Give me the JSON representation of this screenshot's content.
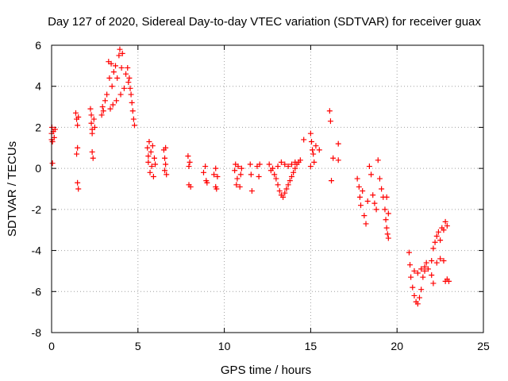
{
  "chart_data": {
    "type": "scatter",
    "title": "Day 127 of 2020, Sidereal Day-to-day VTEC variation (SDTVAR) for receiver guax",
    "xlabel": "GPS time / hours",
    "ylabel": "SDTVAR / TECUs",
    "xlim": [
      0,
      25
    ],
    "ylim": [
      -8,
      6
    ],
    "xticks": [
      0,
      5,
      10,
      15,
      20,
      25
    ],
    "yticks": [
      -8,
      -6,
      -4,
      -2,
      0,
      2,
      4,
      6
    ],
    "xtick_labels": [
      "0",
      "5",
      "10",
      "15",
      "20",
      "25"
    ],
    "ytick_labels": [
      "-8",
      "-6",
      "-4",
      "-2",
      "0",
      "2",
      "4",
      "6"
    ],
    "grid": true,
    "marker": "+",
    "color": "#ff0000",
    "series": [
      {
        "name": "SDTVAR",
        "points": [
          [
            0.0,
            1.4
          ],
          [
            0.0,
            1.7
          ],
          [
            0.02,
            2.0
          ],
          [
            0.05,
            1.3
          ],
          [
            0.05,
            0.25
          ],
          [
            0.1,
            1.8
          ],
          [
            0.15,
            1.5
          ],
          [
            0.2,
            1.9
          ],
          [
            1.4,
            2.7
          ],
          [
            1.45,
            2.4
          ],
          [
            1.5,
            2.1
          ],
          [
            1.5,
            1.0
          ],
          [
            1.45,
            0.7
          ],
          [
            1.5,
            -0.7
          ],
          [
            1.55,
            -1.0
          ],
          [
            1.55,
            2.5
          ],
          [
            2.25,
            2.9
          ],
          [
            2.3,
            2.6
          ],
          [
            2.3,
            2.2
          ],
          [
            2.35,
            1.9
          ],
          [
            2.35,
            0.8
          ],
          [
            2.4,
            0.5
          ],
          [
            2.45,
            2.4
          ],
          [
            2.5,
            2.0
          ],
          [
            2.35,
            1.7
          ],
          [
            2.9,
            2.6
          ],
          [
            2.95,
            3.0
          ],
          [
            3.0,
            2.8
          ],
          [
            3.1,
            3.3
          ],
          [
            3.2,
            3.6
          ],
          [
            3.3,
            5.2
          ],
          [
            3.35,
            4.4
          ],
          [
            3.4,
            2.9
          ],
          [
            3.45,
            5.1
          ],
          [
            3.5,
            4.0
          ],
          [
            3.55,
            3.1
          ],
          [
            3.6,
            4.7
          ],
          [
            3.7,
            5.0
          ],
          [
            3.75,
            3.3
          ],
          [
            3.8,
            4.4
          ],
          [
            3.9,
            5.5
          ],
          [
            3.95,
            5.8
          ],
          [
            4.0,
            3.6
          ],
          [
            4.05,
            4.9
          ],
          [
            4.1,
            5.6
          ],
          [
            4.2,
            3.9
          ],
          [
            4.3,
            4.6
          ],
          [
            4.4,
            4.9
          ],
          [
            4.45,
            4.2
          ],
          [
            4.5,
            4.4
          ],
          [
            4.55,
            3.9
          ],
          [
            4.6,
            3.6
          ],
          [
            4.65,
            3.2
          ],
          [
            4.7,
            2.8
          ],
          [
            4.75,
            2.4
          ],
          [
            4.8,
            2.1
          ],
          [
            5.55,
            1.0
          ],
          [
            5.6,
            0.6
          ],
          [
            5.6,
            0.3
          ],
          [
            5.65,
            1.3
          ],
          [
            5.7,
            -0.2
          ],
          [
            5.75,
            0.8
          ],
          [
            5.8,
            0.1
          ],
          [
            5.85,
            1.1
          ],
          [
            5.9,
            -0.4
          ],
          [
            5.95,
            0.5
          ],
          [
            6.0,
            0.2
          ],
          [
            6.5,
            0.9
          ],
          [
            6.55,
            0.5
          ],
          [
            6.55,
            -0.1
          ],
          [
            6.6,
            0.2
          ],
          [
            6.65,
            -0.3
          ],
          [
            6.6,
            1.0
          ],
          [
            7.9,
            0.6
          ],
          [
            7.95,
            0.1
          ],
          [
            7.95,
            -0.8
          ],
          [
            8.0,
            0.3
          ],
          [
            8.05,
            -0.9
          ],
          [
            8.8,
            -0.2
          ],
          [
            8.9,
            0.1
          ],
          [
            8.95,
            -0.6
          ],
          [
            9.0,
            -0.7
          ],
          [
            9.4,
            -0.3
          ],
          [
            9.5,
            0.0
          ],
          [
            9.5,
            -0.9
          ],
          [
            9.55,
            -1.0
          ],
          [
            9.6,
            -0.4
          ],
          [
            10.6,
            -0.1
          ],
          [
            10.65,
            0.2
          ],
          [
            10.7,
            -0.8
          ],
          [
            10.75,
            -0.5
          ],
          [
            10.8,
            0.1
          ],
          [
            10.9,
            -0.9
          ],
          [
            10.95,
            -0.3
          ],
          [
            11.0,
            0.0
          ],
          [
            11.5,
            0.2
          ],
          [
            11.55,
            -0.3
          ],
          [
            11.6,
            -1.1
          ],
          [
            11.9,
            0.1
          ],
          [
            12.0,
            -0.4
          ],
          [
            12.05,
            0.2
          ],
          [
            12.6,
            0.2
          ],
          [
            12.7,
            -0.1
          ],
          [
            12.8,
            0.0
          ],
          [
            12.9,
            -0.3
          ],
          [
            13.0,
            -0.5
          ],
          [
            13.1,
            -0.8
          ],
          [
            13.2,
            -1.1
          ],
          [
            13.3,
            -1.3
          ],
          [
            13.4,
            -1.4
          ],
          [
            13.5,
            -1.2
          ],
          [
            13.6,
            -1.0
          ],
          [
            13.7,
            -0.8
          ],
          [
            13.8,
            -0.6
          ],
          [
            13.9,
            -0.4
          ],
          [
            14.0,
            -0.2
          ],
          [
            14.1,
            0.0
          ],
          [
            14.2,
            0.2
          ],
          [
            14.3,
            0.3
          ],
          [
            13.1,
            0.1
          ],
          [
            13.3,
            0.3
          ],
          [
            13.5,
            0.2
          ],
          [
            13.7,
            0.1
          ],
          [
            13.9,
            0.2
          ],
          [
            14.1,
            0.3
          ],
          [
            14.4,
            0.4
          ],
          [
            14.6,
            1.4
          ],
          [
            15.0,
            1.7
          ],
          [
            15.05,
            1.3
          ],
          [
            15.1,
            0.9
          ],
          [
            15.15,
            0.7
          ],
          [
            15.2,
            0.3
          ],
          [
            15.0,
            0.1
          ],
          [
            15.3,
            1.1
          ],
          [
            15.5,
            0.9
          ],
          [
            16.1,
            2.8
          ],
          [
            16.15,
            2.3
          ],
          [
            16.2,
            -0.6
          ],
          [
            16.3,
            0.5
          ],
          [
            16.6,
            1.2
          ],
          [
            16.6,
            0.4
          ],
          [
            17.7,
            -0.5
          ],
          [
            17.8,
            -0.9
          ],
          [
            17.85,
            -1.4
          ],
          [
            17.9,
            -1.8
          ],
          [
            18.0,
            -1.1
          ],
          [
            18.1,
            -2.3
          ],
          [
            18.2,
            -2.7
          ],
          [
            18.3,
            -1.6
          ],
          [
            18.4,
            0.1
          ],
          [
            18.5,
            -0.3
          ],
          [
            18.6,
            -1.3
          ],
          [
            18.7,
            -1.7
          ],
          [
            18.8,
            -2.0
          ],
          [
            18.9,
            0.4
          ],
          [
            19.0,
            -0.5
          ],
          [
            19.1,
            -1.0
          ],
          [
            19.2,
            -1.4
          ],
          [
            19.3,
            -2.0
          ],
          [
            19.35,
            -2.5
          ],
          [
            19.4,
            -2.9
          ],
          [
            19.45,
            -3.2
          ],
          [
            19.5,
            -3.4
          ],
          [
            19.4,
            -1.4
          ],
          [
            19.5,
            -2.2
          ],
          [
            20.7,
            -4.1
          ],
          [
            20.75,
            -4.7
          ],
          [
            20.8,
            -5.3
          ],
          [
            20.9,
            -5.8
          ],
          [
            21.0,
            -6.2
          ],
          [
            21.1,
            -6.5
          ],
          [
            21.2,
            -6.6
          ],
          [
            21.3,
            -6.3
          ],
          [
            21.4,
            -5.9
          ],
          [
            21.5,
            -5.3
          ],
          [
            21.6,
            -4.8
          ],
          [
            21.7,
            -4.6
          ],
          [
            21.0,
            -5.0
          ],
          [
            21.2,
            -5.1
          ],
          [
            21.4,
            -4.9
          ],
          [
            21.6,
            -5.0
          ],
          [
            21.8,
            -4.9
          ],
          [
            22.0,
            -4.5
          ],
          [
            22.1,
            -3.9
          ],
          [
            22.2,
            -3.6
          ],
          [
            22.3,
            -3.3
          ],
          [
            22.4,
            -3.1
          ],
          [
            22.5,
            -3.5
          ],
          [
            22.6,
            -2.9
          ],
          [
            22.7,
            -3.0
          ],
          [
            22.8,
            -2.6
          ],
          [
            22.9,
            -2.8
          ],
          [
            22.3,
            -4.6
          ],
          [
            22.5,
            -4.4
          ],
          [
            22.7,
            -4.5
          ],
          [
            22.8,
            -5.5
          ],
          [
            22.9,
            -5.4
          ],
          [
            23.0,
            -5.5
          ],
          [
            22.0,
            -5.2
          ],
          [
            22.1,
            -5.6
          ]
        ]
      }
    ]
  }
}
